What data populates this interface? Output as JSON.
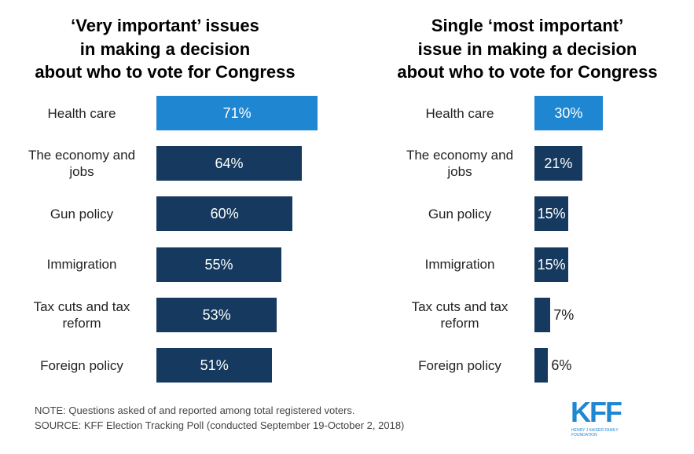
{
  "chart_data": [
    {
      "type": "bar",
      "orientation": "horizontal",
      "title": "‘Very important’ issues\nin making a decision\nabout who to vote for Congress",
      "categories": [
        "Health care",
        "The economy and jobs",
        "Gun policy",
        "Immigration",
        "Tax cuts and tax reform",
        "Foreign policy"
      ],
      "values": [
        71,
        64,
        60,
        55,
        53,
        51
      ],
      "value_labels": [
        "71%",
        "64%",
        "60%",
        "55%",
        "53%",
        "51%"
      ],
      "colors": [
        "#1f87d2",
        "#163a5f",
        "#163a5f",
        "#163a5f",
        "#163a5f",
        "#163a5f"
      ]
    },
    {
      "type": "bar",
      "orientation": "horizontal",
      "title": "Single ‘most important’\nissue in making a decision\nabout who to vote for Congress",
      "categories": [
        "Health care",
        "The economy and jobs",
        "Gun policy",
        "Immigration",
        "Tax cuts and tax reform",
        "Foreign policy"
      ],
      "values": [
        30,
        21,
        15,
        15,
        7,
        6
      ],
      "value_labels": [
        "30%",
        "21%",
        "15%",
        "15%",
        "7%",
        "6%"
      ],
      "colors": [
        "#1f87d2",
        "#163a5f",
        "#163a5f",
        "#163a5f",
        "#163a5f",
        "#163a5f"
      ]
    }
  ],
  "note": "NOTE: Questions asked of and reported among total registered voters.",
  "source": "SOURCE: KFF Election Tracking Poll (conducted September 19-October 2, 2018)",
  "logo": {
    "text": "KFF",
    "subtitle": "HENRY J KAISER FAMILY FOUNDATION"
  }
}
